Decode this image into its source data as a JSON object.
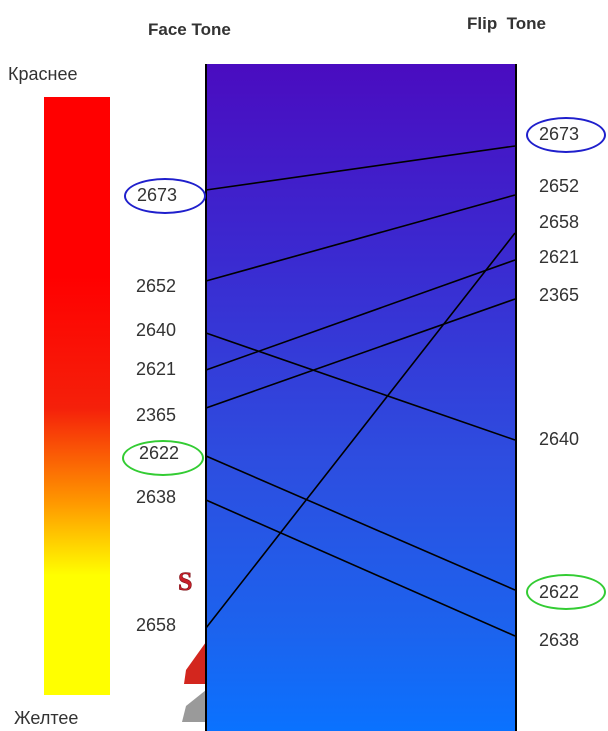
{
  "headers": {
    "face": "Face Tone",
    "flip": "Flip  Tone"
  },
  "scale": {
    "top_label": "Краснее",
    "bottom_label": "Желтее",
    "top_color": "#ff0000",
    "bottom_color": "#ffff00"
  },
  "highlight_colors": {
    "blue": "#1f1fcc",
    "green": "#33cc33"
  },
  "face_values": [
    "2673",
    "2652",
    "2640",
    "2621",
    "2365",
    "2622",
    "2638",
    "2658"
  ],
  "flip_values": [
    "2673",
    "2652",
    "2658",
    "2621",
    "2365",
    "2640",
    "2622",
    "2638"
  ],
  "highlighted": {
    "blue": "2673",
    "green": "2622"
  }
}
